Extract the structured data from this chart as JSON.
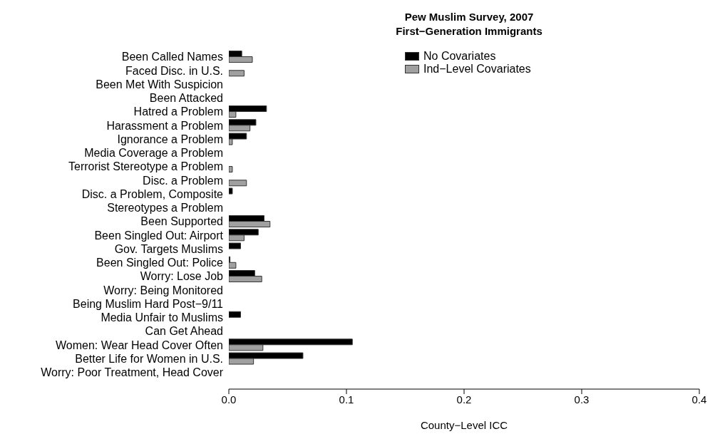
{
  "chart_data": {
    "type": "bar",
    "orientation": "horizontal",
    "title": "Pew Muslim Survey, 2007",
    "subtitle": "First−Generation Immigrants",
    "xlabel": "County−Level ICC",
    "categories": [
      "Been Called Names",
      "Faced Disc. in U.S.",
      "Been Met With Suspicion",
      "Been Attacked",
      "Hatred a Problem",
      "Harassment a Problem",
      "Ignorance a Problem",
      "Media Coverage a Problem",
      "Terrorist Stereotype a Problem",
      "Disc. a Problem",
      "Disc. a Problem, Composite",
      "Stereotypes a Problem",
      "Been Supported",
      "Been Singled Out: Airport",
      "Gov. Targets Muslims",
      "Been Singled Out: Police",
      "Worry: Lose Job",
      "Worry: Being Monitored",
      "Being Muslim Hard Post−9/11",
      "Media Unfair to Muslims",
      "Can Get Ahead",
      "Women: Wear Head Cover Often",
      "Better Life for Women in U.S.",
      "Worry: Poor Treatment, Head Cover"
    ],
    "series": [
      {
        "name": "No Covariates",
        "color": "#000000",
        "values": [
          0.011,
          0,
          0,
          0,
          0.032,
          0.023,
          0.015,
          0,
          0,
          0,
          0.003,
          0,
          0.03,
          0.025,
          0.01,
          0.001,
          0.022,
          0,
          0,
          0.01,
          0,
          0.105,
          0.063,
          0
        ]
      },
      {
        "name": "Ind−Level Covariates",
        "color": "#a0a0a0",
        "values": [
          0.02,
          0.013,
          0,
          0,
          0.006,
          0.018,
          0.003,
          0,
          0.003,
          0.015,
          0,
          0,
          0.035,
          0.013,
          0,
          0.006,
          0.028,
          0,
          0,
          0,
          0,
          0.029,
          0.021,
          0
        ]
      }
    ],
    "xlim": [
      0,
      0.4
    ],
    "xticks": [
      {
        "value": 0,
        "label": "0.0"
      },
      0.1,
      0.2,
      0.3,
      0.4
    ],
    "grid": false,
    "legend": "top"
  }
}
